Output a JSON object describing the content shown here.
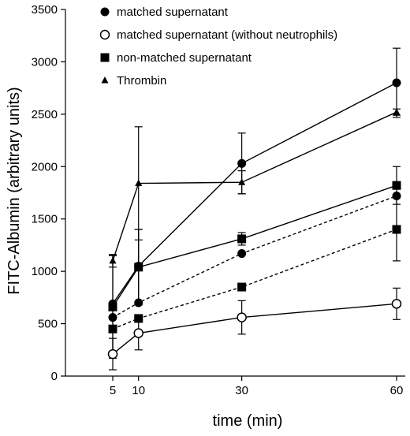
{
  "chart_data": {
    "type": "line",
    "xlabel": "time (min)",
    "ylabel": "FITC-Albumin (arbitrary units)",
    "xlim": [
      0,
      62
    ],
    "ylim": [
      0,
      3500
    ],
    "xticks": [
      5,
      10,
      30,
      60
    ],
    "yticks": [
      0,
      500,
      1000,
      1500,
      2000,
      2500,
      3000,
      3500
    ],
    "legend": {
      "placement": "top-left",
      "entries": [
        {
          "label": "matched supernatant",
          "marker": "filled-circle"
        },
        {
          "label": "matched supernatant (without neutrophils)",
          "marker": "open-circle"
        },
        {
          "label": "non-matched supernatant",
          "marker": "filled-square"
        },
        {
          "label": "Thrombin",
          "marker": "filled-triangle"
        }
      ]
    },
    "series": [
      {
        "marker": "filled-circle",
        "line": "solid",
        "x": [
          5,
          10,
          30,
          60
        ],
        "y": [
          690,
          1050,
          2030,
          2800
        ],
        "err": [
          470,
          350,
          290,
          330
        ]
      },
      {
        "marker": "filled-triangle",
        "line": "solid",
        "x": [
          5,
          10,
          30,
          60
        ],
        "y": [
          1100,
          1840,
          1850,
          2520
        ],
        "err": [
          60,
          540,
          110,
          30
        ]
      },
      {
        "marker": "filled-square",
        "line": "solid",
        "x": [
          5,
          10,
          30,
          60
        ],
        "y": [
          660,
          1040,
          1310,
          1820
        ],
        "err": [
          490,
          360,
          60,
          180
        ]
      },
      {
        "marker": "filled-circle",
        "line": "dashed",
        "x": [
          5,
          10,
          30,
          60
        ],
        "y": [
          560,
          700,
          1170,
          1720
        ],
        "err": [
          0,
          0,
          0,
          0
        ]
      },
      {
        "marker": "filled-square",
        "line": "dashed",
        "x": [
          5,
          10,
          30,
          60
        ],
        "y": [
          450,
          550,
          850,
          1400
        ],
        "err": [
          0,
          0,
          0,
          300
        ]
      },
      {
        "marker": "open-circle",
        "line": "solid",
        "x": [
          5,
          10,
          30,
          60
        ],
        "y": [
          210,
          410,
          560,
          690
        ],
        "err": [
          150,
          160,
          160,
          150
        ]
      }
    ]
  }
}
